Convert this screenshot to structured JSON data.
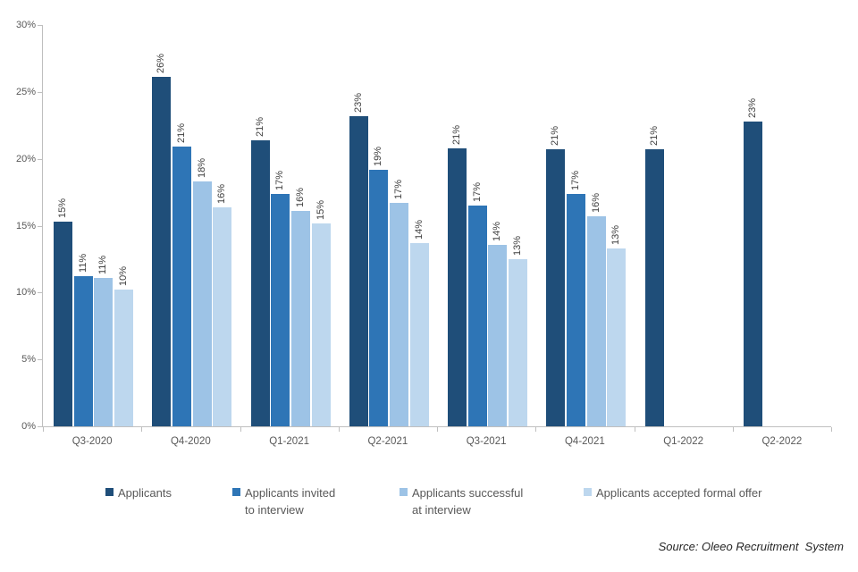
{
  "chart_data": {
    "type": "bar",
    "title": "",
    "categories": [
      "Q3-2020",
      "Q4-2020",
      "Q1-2021",
      "Q2-2021",
      "Q3-2021",
      "Q4-2021",
      "Q1-2022",
      "Q2-2022"
    ],
    "series": [
      {
        "name": "Applicants",
        "color": "#1F4E79",
        "values": [
          15.3,
          26.1,
          21.4,
          23.2,
          20.8,
          20.7,
          20.7,
          22.8
        ],
        "labels": [
          "15%",
          "26%",
          "21%",
          "23%",
          "21%",
          "21%",
          "21%",
          "23%"
        ]
      },
      {
        "name": "Applicants invited to interview",
        "color": "#2E75B6",
        "values": [
          11.2,
          20.9,
          17.4,
          19.2,
          16.5,
          17.4,
          null,
          null
        ],
        "labels": [
          "11%",
          "21%",
          "17%",
          "19%",
          "17%",
          "17%",
          null,
          null
        ]
      },
      {
        "name": "Applicants successful at interview",
        "color": "#9DC3E6",
        "values": [
          11.1,
          18.3,
          16.1,
          16.7,
          13.6,
          15.7,
          null,
          null
        ],
        "labels": [
          "11%",
          "18%",
          "16%",
          "17%",
          "14%",
          "16%",
          null,
          null
        ]
      },
      {
        "name": "Applicants accepted formal offer",
        "color": "#BDD7EE",
        "values": [
          10.2,
          16.4,
          15.2,
          13.7,
          12.5,
          13.3,
          null,
          null
        ],
        "labels": [
          "10%",
          "16%",
          "15%",
          "14%",
          "13%",
          "13%",
          null,
          null
        ]
      }
    ],
    "ylim": [
      0,
      30
    ],
    "ytick_labels": [
      "0%",
      "5%",
      "10%",
      "15%",
      "20%",
      "25%",
      "30%"
    ],
    "grid": false,
    "legend_position": "bottom",
    "legend_items": [
      "Applicants",
      "Applicants invited\nto interview",
      "Applicants successful\nat interview",
      "Applicants accepted formal offer"
    ],
    "source_note": "Source: Oleeo Recruitment  System"
  },
  "colors": {
    "axis": "#BFBFBF",
    "tick_label": "#595959",
    "value_label": "#404040",
    "legend_text": "#595959",
    "source_text": "#262626",
    "background": "#FFFFFF"
  }
}
